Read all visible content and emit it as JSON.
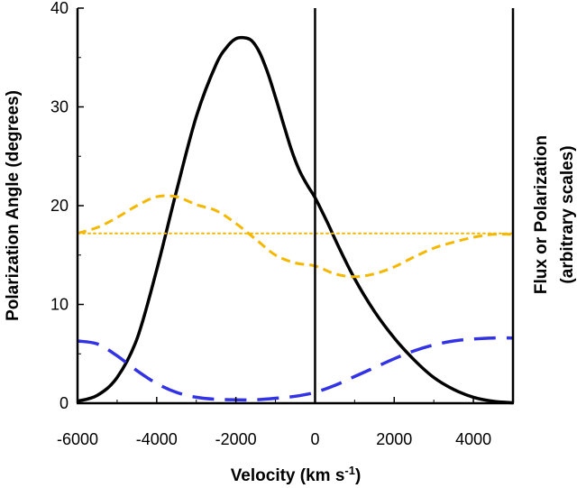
{
  "chart_data": {
    "type": "line",
    "xlabel": "Velocity   (km s",
    "xlabel_sup": "-1",
    "xlabel_end": ")",
    "ylabel": "Polarization Angle (degrees)",
    "ylabel_right_line1": "Flux or Polarization",
    "ylabel_right_line2": "(arbitrary scales)",
    "xlim": [
      -6000,
      5000
    ],
    "ylim": [
      0,
      40
    ],
    "x_ticks": [
      -6000,
      -4000,
      -2000,
      0,
      2000,
      4000
    ],
    "x_tick_labels": [
      "-6000",
      "-4000",
      "-2000",
      "0",
      "2000",
      "4000"
    ],
    "y_ticks": [
      0,
      10,
      20,
      30,
      40
    ],
    "y_tick_labels": [
      "0",
      "10",
      "20",
      "30",
      "40"
    ],
    "grid": false,
    "vertical_reference_line_x": 0,
    "series": [
      {
        "style": "solid",
        "color": "#000000",
        "x": [
          -6000,
          -5500,
          -5000,
          -4500,
          -4000,
          -3500,
          -3000,
          -2500,
          -2200,
          -2000,
          -1800,
          -1600,
          -1400,
          -1200,
          -1000,
          -800,
          -600,
          -400,
          -200,
          0,
          300,
          600,
          1000,
          1500,
          2000,
          2500,
          3000,
          3500,
          4000,
          4500,
          5000
        ],
        "y": [
          0.2,
          0.8,
          2.6,
          6.5,
          13.5,
          21.5,
          29.0,
          34.3,
          36.2,
          36.9,
          37.0,
          36.7,
          35.5,
          33.5,
          31.0,
          28.3,
          25.7,
          23.6,
          22.1,
          20.8,
          18.4,
          15.8,
          12.6,
          9.3,
          6.6,
          4.4,
          2.6,
          1.4,
          0.6,
          0.2,
          0.05
        ]
      },
      {
        "style": "dashed",
        "color": "#f5b800",
        "x": [
          -6000,
          -5500,
          -5000,
          -4500,
          -4000,
          -3500,
          -3000,
          -2500,
          -2000,
          -1500,
          -1000,
          -500,
          0,
          500,
          1000,
          1500,
          2000,
          2500,
          3000,
          3500,
          4000,
          4500,
          5000
        ],
        "y": [
          17.2,
          17.8,
          18.8,
          20.0,
          20.9,
          20.9,
          20.1,
          19.5,
          18.2,
          16.6,
          15.0,
          14.2,
          13.9,
          13.1,
          12.8,
          13.1,
          13.8,
          14.8,
          15.7,
          16.3,
          16.8,
          17.1,
          17.1
        ]
      },
      {
        "style": "dotted",
        "color": "#f5b800",
        "x": [
          -6000,
          5000
        ],
        "y": [
          17.2,
          17.2
        ]
      },
      {
        "style": "long-dashed",
        "color": "#3333e6",
        "x": [
          -6000,
          -5500,
          -5000,
          -4500,
          -4000,
          -3500,
          -3000,
          -2500,
          -2000,
          -1500,
          -1000,
          -500,
          0,
          500,
          1000,
          1500,
          2000,
          2500,
          3000,
          3500,
          4000,
          4500,
          5000
        ],
        "y": [
          6.3,
          6.0,
          4.8,
          3.3,
          2.0,
          1.1,
          0.6,
          0.4,
          0.35,
          0.35,
          0.5,
          0.7,
          1.1,
          1.8,
          2.7,
          3.6,
          4.5,
          5.3,
          5.9,
          6.3,
          6.5,
          6.6,
          6.6
        ]
      }
    ]
  }
}
